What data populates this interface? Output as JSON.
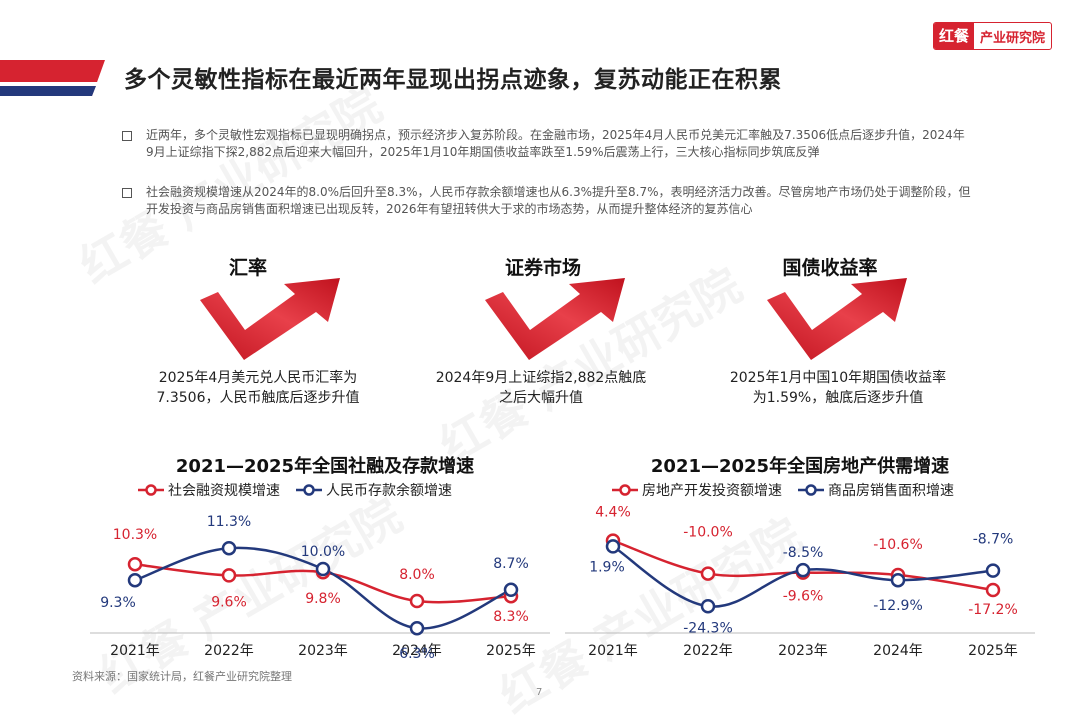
{
  "brand": {
    "mark": "红餐",
    "name": "产业研究院",
    "watermark": "红餐 产业研究院"
  },
  "title": "多个灵敏性指标在最近两年显现出拐点迹象，复苏动能正在积累",
  "bullets": [
    "近两年，多个灵敏性宏观指标已显现明确拐点，预示经济步入复苏阶段。在金融市场，2025年4月人民币兑美元汇率触及7.3506低点后逐步升值，2024年9月上证综指下探2,882点后迎来大幅回升，2025年1月10年期国债收益率跌至1.59%后震荡上行，三大核心指标同步筑底反弹",
    "社会融资规模增速从2024年的8.0%后回升至8.3%，人民币存款余额增速也从6.3%提升至8.7%，表明经济活力改善。尽管房地产市场仍处于调整阶段，但开发投资与商品房销售面积增速已出现反转，2026年有望扭转供大于求的市场态势，从而提升整体经济的复苏信心"
  ],
  "indicators": [
    {
      "title": "汇率",
      "desc": "2025年4月美元兑人民币汇率为7.3506，人民币触底后逐步升值",
      "icon": "rising-arrow-icon"
    },
    {
      "title": "证券市场",
      "desc": "2024年9月上证综指2,882点触底之后大幅升值",
      "icon": "rising-arrow-icon"
    },
    {
      "title": "国债收益率",
      "desc": "2025年1月中国10年期国债收益率为1.59%，触底后逐步升值",
      "icon": "rising-arrow-icon"
    }
  ],
  "colors": {
    "red": "#d62330",
    "navy": "#23397c",
    "gray_line": "#bbbbbb"
  },
  "chart_data": [
    {
      "type": "line",
      "title": "2021—2025年全国社融及存款增速",
      "categories": [
        "2021年",
        "2022年",
        "2023年",
        "2024年",
        "2025年"
      ],
      "series": [
        {
          "name": "社会融资规模增速",
          "color": "#d62330",
          "values": [
            10.3,
            9.6,
            9.8,
            8.0,
            8.3
          ],
          "labels": [
            "10.3%",
            "9.6%",
            "9.8%",
            "8.0%",
            "8.3%"
          ]
        },
        {
          "name": "人民币存款余额增速",
          "color": "#23397c",
          "values": [
            9.3,
            11.3,
            10.0,
            6.3,
            8.7
          ],
          "labels": [
            "9.3%",
            "11.3%",
            "10.0%",
            "6.3%",
            "8.7%"
          ]
        }
      ],
      "ylim": [
        4,
        14
      ]
    },
    {
      "type": "line",
      "title": "2021—2025年全国房地产供需增速",
      "categories": [
        "2021年",
        "2022年",
        "2023年",
        "2024年",
        "2025年"
      ],
      "series": [
        {
          "name": "房地产开发投资额增速",
          "color": "#d62330",
          "values": [
            4.4,
            -10.0,
            -9.6,
            -10.6,
            -17.2
          ],
          "labels": [
            "4.4%",
            "-10.0%",
            "-9.6%",
            "-10.6%",
            "-17.2%"
          ]
        },
        {
          "name": "商品房销售面积增速",
          "color": "#23397c",
          "values": [
            1.9,
            -24.3,
            -8.5,
            -12.9,
            -8.7
          ],
          "labels": [
            "1.9%",
            "-24.3%",
            "-8.5%",
            "-12.9%",
            "-8.7%"
          ]
        }
      ],
      "ylim": [
        -50,
        20
      ]
    }
  ],
  "source": "资料来源：国家统计局，红餐产业研究院整理",
  "page_number": "7"
}
